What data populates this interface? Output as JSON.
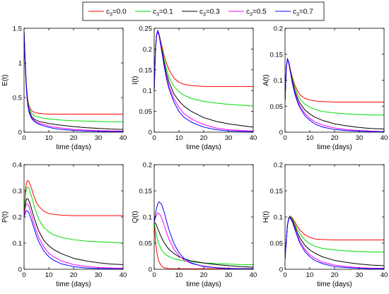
{
  "legend": {
    "placement": "top-center",
    "entries": [
      {
        "label": "c",
        "sub": "3",
        "suffix": "=0.0",
        "color": "#ff0000"
      },
      {
        "label": "c",
        "sub": "3",
        "suffix": "=0.1",
        "color": "#00dd00"
      },
      {
        "label": "c",
        "sub": "3",
        "suffix": "=0.3",
        "color": "#000000"
      },
      {
        "label": "c",
        "sub": "3",
        "suffix": "=0.5",
        "color": "#ff00ff"
      },
      {
        "label": "c",
        "sub": "3",
        "suffix": "=0.7",
        "color": "#0000ff"
      }
    ]
  },
  "chart_data": [
    {
      "type": "line",
      "ylabel": "E(t)",
      "xlabel": "time (days)",
      "xlim": [
        0,
        40
      ],
      "ylim": [
        0,
        1.5
      ],
      "xticks": [
        0,
        10,
        20,
        30,
        40
      ],
      "xtick_labels": [
        "0",
        "10",
        "20",
        "30",
        "40"
      ],
      "yticks": [
        0,
        0.5,
        1,
        1.5
      ],
      "ytick_labels": [
        "0",
        "0.5",
        "1",
        "1.5"
      ],
      "x": [
        0,
        0.5,
        1,
        1.5,
        2,
        3,
        4,
        5,
        6,
        8,
        10,
        12,
        15,
        20,
        25,
        30,
        35,
        40
      ],
      "series": [
        {
          "color": "#ff0000",
          "values": [
            1.45,
            1.0,
            0.66,
            0.47,
            0.38,
            0.31,
            0.29,
            0.28,
            0.27,
            0.265,
            0.26,
            0.26,
            0.26,
            0.26,
            0.26,
            0.26,
            0.26,
            0.26
          ]
        },
        {
          "color": "#00dd00",
          "values": [
            1.45,
            0.98,
            0.64,
            0.45,
            0.35,
            0.27,
            0.24,
            0.225,
            0.215,
            0.2,
            0.19,
            0.185,
            0.175,
            0.165,
            0.16,
            0.155,
            0.15,
            0.15
          ]
        },
        {
          "color": "#000000",
          "values": [
            1.45,
            0.96,
            0.62,
            0.42,
            0.32,
            0.23,
            0.19,
            0.17,
            0.155,
            0.14,
            0.125,
            0.115,
            0.1,
            0.08,
            0.065,
            0.055,
            0.045,
            0.04
          ]
        },
        {
          "color": "#ff00ff",
          "values": [
            1.45,
            0.95,
            0.6,
            0.4,
            0.3,
            0.21,
            0.17,
            0.145,
            0.13,
            0.11,
            0.09,
            0.075,
            0.06,
            0.04,
            0.03,
            0.022,
            0.018,
            0.015
          ]
        },
        {
          "color": "#0000ff",
          "values": [
            1.45,
            0.94,
            0.59,
            0.39,
            0.29,
            0.2,
            0.16,
            0.135,
            0.115,
            0.09,
            0.07,
            0.055,
            0.04,
            0.025,
            0.017,
            0.012,
            0.009,
            0.007
          ]
        }
      ]
    },
    {
      "type": "line",
      "ylabel": "I(t)",
      "xlabel": "time (days)",
      "xlim": [
        0,
        40
      ],
      "ylim": [
        0,
        0.25
      ],
      "xticks": [
        0,
        10,
        20,
        30,
        40
      ],
      "xtick_labels": [
        "0",
        "10",
        "20",
        "30",
        "40"
      ],
      "yticks": [
        0,
        0.05,
        0.1,
        0.15,
        0.2,
        0.25
      ],
      "ytick_labels": [
        "0",
        "0.05",
        "0.1",
        "0.15",
        "0.2",
        "0.25"
      ],
      "x": [
        0,
        0.5,
        1,
        1.5,
        2,
        3,
        4,
        5,
        6,
        8,
        10,
        12,
        15,
        20,
        25,
        30,
        35,
        40
      ],
      "series": [
        {
          "color": "#ff0000",
          "values": [
            0.1,
            0.2,
            0.235,
            0.24,
            0.235,
            0.21,
            0.185,
            0.165,
            0.15,
            0.13,
            0.12,
            0.115,
            0.112,
            0.11,
            0.11,
            0.11,
            0.11,
            0.11
          ]
        },
        {
          "color": "#00dd00",
          "values": [
            0.1,
            0.2,
            0.235,
            0.24,
            0.233,
            0.205,
            0.175,
            0.15,
            0.132,
            0.11,
            0.097,
            0.089,
            0.081,
            0.074,
            0.07,
            0.067,
            0.065,
            0.063
          ]
        },
        {
          "color": "#000000",
          "values": [
            0.1,
            0.2,
            0.235,
            0.24,
            0.232,
            0.2,
            0.168,
            0.14,
            0.12,
            0.092,
            0.075,
            0.063,
            0.05,
            0.035,
            0.026,
            0.02,
            0.016,
            0.012
          ]
        },
        {
          "color": "#ff00ff",
          "values": [
            0.1,
            0.2,
            0.235,
            0.24,
            0.231,
            0.195,
            0.162,
            0.132,
            0.11,
            0.08,
            0.06,
            0.045,
            0.032,
            0.018,
            0.01,
            0.006,
            0.004,
            0.003
          ]
        },
        {
          "color": "#0000ff",
          "values": [
            0.1,
            0.2,
            0.236,
            0.245,
            0.235,
            0.198,
            0.16,
            0.128,
            0.104,
            0.072,
            0.05,
            0.036,
            0.024,
            0.012,
            0.006,
            0.003,
            0.002,
            0.001
          ]
        }
      ]
    },
    {
      "type": "line",
      "ylabel": "A(t)",
      "xlabel": "time (days)",
      "xlim": [
        0,
        40
      ],
      "ylim": [
        0,
        0.2
      ],
      "xticks": [
        0,
        10,
        20,
        30,
        40
      ],
      "xtick_labels": [
        "0",
        "10",
        "20",
        "30",
        "40"
      ],
      "yticks": [
        0,
        0.05,
        0.1,
        0.15,
        0.2
      ],
      "ytick_labels": [
        "0",
        "0.05",
        "0.1",
        "0.15",
        "0.2"
      ],
      "x": [
        0,
        0.5,
        1,
        1.5,
        2,
        3,
        4,
        5,
        6,
        8,
        10,
        12,
        15,
        20,
        25,
        30,
        35,
        40
      ],
      "series": [
        {
          "color": "#ff0000",
          "values": [
            0.06,
            0.125,
            0.14,
            0.135,
            0.125,
            0.105,
            0.09,
            0.08,
            0.072,
            0.065,
            0.062,
            0.06,
            0.059,
            0.058,
            0.058,
            0.058,
            0.058,
            0.058
          ]
        },
        {
          "color": "#00dd00",
          "values": [
            0.06,
            0.125,
            0.14,
            0.134,
            0.123,
            0.101,
            0.085,
            0.073,
            0.064,
            0.054,
            0.048,
            0.044,
            0.04,
            0.037,
            0.035,
            0.034,
            0.033,
            0.033
          ]
        },
        {
          "color": "#000000",
          "values": [
            0.06,
            0.125,
            0.14,
            0.133,
            0.121,
            0.097,
            0.079,
            0.066,
            0.056,
            0.043,
            0.035,
            0.029,
            0.023,
            0.016,
            0.012,
            0.009,
            0.007,
            0.006
          ]
        },
        {
          "color": "#ff00ff",
          "values": [
            0.06,
            0.125,
            0.14,
            0.132,
            0.12,
            0.094,
            0.075,
            0.061,
            0.05,
            0.036,
            0.027,
            0.02,
            0.014,
            0.008,
            0.005,
            0.003,
            0.002,
            0.001
          ]
        },
        {
          "color": "#0000ff",
          "values": [
            0.06,
            0.126,
            0.142,
            0.134,
            0.121,
            0.093,
            0.073,
            0.058,
            0.047,
            0.032,
            0.023,
            0.016,
            0.01,
            0.005,
            0.003,
            0.002,
            0.001,
            0.001
          ]
        }
      ]
    },
    {
      "type": "line",
      "ylabel": "P(t)",
      "xlabel": "time (days)",
      "xlim": [
        0,
        40
      ],
      "ylim": [
        0,
        0.4
      ],
      "xticks": [
        0,
        10,
        20,
        30,
        40
      ],
      "xtick_labels": [
        "0",
        "10",
        "20",
        "30",
        "40"
      ],
      "yticks": [
        0,
        0.1,
        0.2,
        0.3,
        0.4
      ],
      "ytick_labels": [
        "0",
        "0.1",
        "0.2",
        "0.3",
        "0.4"
      ],
      "x": [
        0,
        0.5,
        1,
        1.5,
        2,
        3,
        4,
        5,
        6,
        8,
        10,
        12,
        15,
        20,
        25,
        30,
        35,
        40
      ],
      "series": [
        {
          "color": "#ff0000",
          "values": [
            0.2,
            0.3,
            0.33,
            0.34,
            0.335,
            0.31,
            0.28,
            0.255,
            0.24,
            0.222,
            0.213,
            0.21,
            0.207,
            0.205,
            0.205,
            0.205,
            0.205,
            0.205
          ]
        },
        {
          "color": "#00dd00",
          "values": [
            0.2,
            0.28,
            0.31,
            0.315,
            0.31,
            0.28,
            0.245,
            0.215,
            0.19,
            0.16,
            0.143,
            0.132,
            0.122,
            0.113,
            0.108,
            0.105,
            0.103,
            0.1
          ]
        },
        {
          "color": "#000000",
          "values": [
            0.2,
            0.25,
            0.27,
            0.27,
            0.262,
            0.232,
            0.2,
            0.17,
            0.145,
            0.11,
            0.09,
            0.075,
            0.06,
            0.042,
            0.032,
            0.025,
            0.02,
            0.018
          ]
        },
        {
          "color": "#ff00ff",
          "values": [
            0.2,
            0.235,
            0.25,
            0.248,
            0.24,
            0.21,
            0.175,
            0.145,
            0.12,
            0.085,
            0.062,
            0.047,
            0.032,
            0.018,
            0.011,
            0.007,
            0.005,
            0.004
          ]
        },
        {
          "color": "#0000ff",
          "values": [
            0.2,
            0.215,
            0.225,
            0.222,
            0.215,
            0.188,
            0.157,
            0.128,
            0.104,
            0.07,
            0.048,
            0.034,
            0.021,
            0.01,
            0.005,
            0.003,
            0.002,
            0.001
          ]
        }
      ]
    },
    {
      "type": "line",
      "ylabel": "Q(t)",
      "xlabel": "time (days)",
      "xlim": [
        0,
        40
      ],
      "ylim": [
        0,
        0.2
      ],
      "xticks": [
        0,
        10,
        20,
        30,
        40
      ],
      "xtick_labels": [
        "0",
        "10",
        "20",
        "30",
        "40"
      ],
      "yticks": [
        0,
        0.05,
        0.1,
        0.15,
        0.2
      ],
      "ytick_labels": [
        "0",
        "0.05",
        "0.1",
        "0.15",
        "0.2"
      ],
      "x": [
        0,
        0.5,
        1,
        1.5,
        2,
        3,
        4,
        5,
        6,
        8,
        10,
        12,
        15,
        20,
        25,
        30,
        35,
        40
      ],
      "series": [
        {
          "color": "#ff0000",
          "values": [
            0.09,
            0.055,
            0.035,
            0.022,
            0.014,
            0.006,
            0.003,
            0.002,
            0.001,
            0.001,
            0.001,
            0.001,
            0.001,
            0.001,
            0.001,
            0.001,
            0.001,
            0.001
          ]
        },
        {
          "color": "#00dd00",
          "values": [
            0.09,
            0.075,
            0.063,
            0.054,
            0.047,
            0.037,
            0.031,
            0.027,
            0.024,
            0.02,
            0.018,
            0.016,
            0.014,
            0.012,
            0.011,
            0.01,
            0.009,
            0.009
          ]
        },
        {
          "color": "#000000",
          "values": [
            0.09,
            0.088,
            0.083,
            0.077,
            0.071,
            0.06,
            0.051,
            0.044,
            0.038,
            0.03,
            0.024,
            0.02,
            0.016,
            0.012,
            0.009,
            0.007,
            0.005,
            0.004
          ]
        },
        {
          "color": "#ff00ff",
          "values": [
            0.09,
            0.098,
            0.104,
            0.108,
            0.107,
            0.099,
            0.085,
            0.07,
            0.057,
            0.038,
            0.026,
            0.018,
            0.011,
            0.006,
            0.003,
            0.002,
            0.001,
            0.001
          ]
        },
        {
          "color": "#0000ff",
          "values": [
            0.09,
            0.105,
            0.118,
            0.126,
            0.129,
            0.124,
            0.11,
            0.092,
            0.075,
            0.049,
            0.032,
            0.021,
            0.012,
            0.005,
            0.003,
            0.001,
            0.001,
            0.001
          ]
        }
      ]
    },
    {
      "type": "line",
      "ylabel": "H(t)",
      "xlabel": "time (days)",
      "xlim": [
        0,
        40
      ],
      "ylim": [
        0,
        0.2
      ],
      "xticks": [
        0,
        10,
        20,
        30,
        40
      ],
      "xtick_labels": [
        "0",
        "10",
        "20",
        "30",
        "40"
      ],
      "yticks": [
        0,
        0.05,
        0.1,
        0.15,
        0.2
      ],
      "ytick_labels": [
        "0",
        "0.05",
        "0.1",
        "0.15",
        "0.2"
      ],
      "x": [
        0,
        0.5,
        1,
        1.5,
        2,
        3,
        4,
        5,
        6,
        8,
        10,
        12,
        15,
        20,
        25,
        30,
        35,
        40
      ],
      "series": [
        {
          "color": "#ff0000",
          "values": [
            0.02,
            0.055,
            0.085,
            0.098,
            0.102,
            0.098,
            0.09,
            0.082,
            0.075,
            0.066,
            0.061,
            0.058,
            0.057,
            0.056,
            0.056,
            0.056,
            0.056,
            0.056
          ]
        },
        {
          "color": "#00dd00",
          "values": [
            0.02,
            0.055,
            0.085,
            0.098,
            0.101,
            0.096,
            0.086,
            0.076,
            0.068,
            0.056,
            0.049,
            0.044,
            0.04,
            0.037,
            0.035,
            0.034,
            0.033,
            0.033
          ]
        },
        {
          "color": "#000000",
          "values": [
            0.02,
            0.055,
            0.085,
            0.098,
            0.1,
            0.093,
            0.082,
            0.07,
            0.06,
            0.046,
            0.037,
            0.031,
            0.024,
            0.017,
            0.013,
            0.01,
            0.008,
            0.007
          ]
        },
        {
          "color": "#ff00ff",
          "values": [
            0.02,
            0.055,
            0.085,
            0.097,
            0.099,
            0.091,
            0.078,
            0.065,
            0.054,
            0.038,
            0.028,
            0.021,
            0.014,
            0.008,
            0.005,
            0.003,
            0.002,
            0.002
          ]
        },
        {
          "color": "#0000ff",
          "values": [
            0.02,
            0.055,
            0.085,
            0.097,
            0.099,
            0.09,
            0.076,
            0.062,
            0.05,
            0.034,
            0.024,
            0.017,
            0.011,
            0.005,
            0.003,
            0.002,
            0.001,
            0.001
          ]
        }
      ]
    }
  ]
}
